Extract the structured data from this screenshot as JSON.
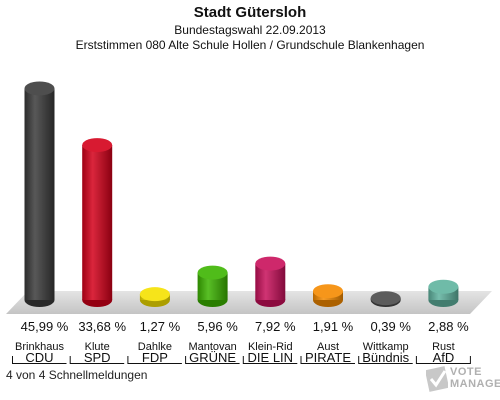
{
  "header": {
    "title": "Stadt Gütersloh",
    "subtitle": "Bundestagswahl 22.09.2013",
    "subtitle2": "Erststimmen 080 Alte Schule Hollen / Grundschule Blankenhagen"
  },
  "footnote": "4 von 4 Schnellmeldungen",
  "logo": {
    "line1": "VOTE",
    "line2": "MANAGER"
  },
  "chart_data": {
    "type": "bar",
    "title": "Stadt Gütersloh",
    "unit": "%",
    "ylim": [
      0,
      50
    ],
    "categories": [
      "Brinkhaus",
      "Klute",
      "Dahlke",
      "Mantovan",
      "Klein-Rid",
      "Aust",
      "Wittkamp",
      "Rust"
    ],
    "parties": [
      "CDU",
      "SPD",
      "FDP",
      "GRÜNE",
      "DIE LIN",
      "PIRATE",
      "Bündnis",
      "AfD"
    ],
    "values": [
      45.99,
      33.68,
      1.27,
      5.96,
      7.92,
      1.91,
      0.39,
      2.88
    ],
    "value_labels": [
      "45,99 %",
      "33,68 %",
      "1,27 %",
      "5,96 %",
      "7,92 %",
      "1,91 %",
      "0,39 %",
      "2,88 %"
    ],
    "colors": [
      "#3a3a3a",
      "#d4001a",
      "#f5e100",
      "#3cb400",
      "#c8105a",
      "#f58a00",
      "#4a4a4a",
      "#5fb39e"
    ]
  }
}
